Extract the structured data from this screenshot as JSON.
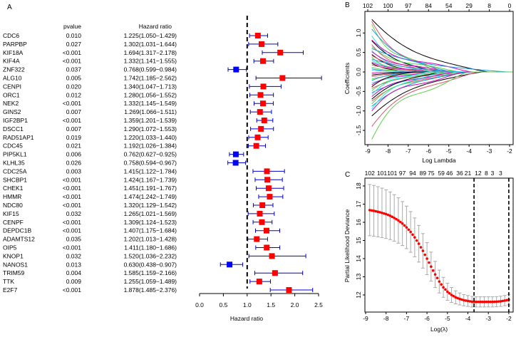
{
  "chart_data": [
    {
      "type": "forest",
      "panel_label": "A",
      "column_headers": {
        "pvalue": "pvalue",
        "hazard_ratio": "Hazard ratio"
      },
      "xlabel": "Hazard ratio",
      "xlim": [
        0,
        2.5
      ],
      "xticks": [
        "0.0",
        "0.5",
        "1.0",
        "1.5",
        "2.0",
        "2.5"
      ],
      "reference_line": 1.0,
      "colors": {
        "risk": "#ff0000",
        "protective": "#0000ff",
        "ci": "#0000cc"
      },
      "rows": [
        {
          "gene": "CDC6",
          "pvalue": "0.010",
          "hr_text": "1.225(1.050−1.429)",
          "hr": 1.225,
          "lo": 1.05,
          "hi": 1.429
        },
        {
          "gene": "PARPBP",
          "pvalue": "0.027",
          "hr_text": "1.302(1.031−1.644)",
          "hr": 1.302,
          "lo": 1.031,
          "hi": 1.644
        },
        {
          "gene": "KIF18A",
          "pvalue": "<0.001",
          "hr_text": "1.694(1.317−2.178)",
          "hr": 1.694,
          "lo": 1.317,
          "hi": 2.178
        },
        {
          "gene": "KIF4A",
          "pvalue": "<0.001",
          "hr_text": "1.332(1.141−1.555)",
          "hr": 1.332,
          "lo": 1.141,
          "hi": 1.555
        },
        {
          "gene": "ZNF322",
          "pvalue": "0.037",
          "hr_text": "0.768(0.599−0.984)",
          "hr": 0.768,
          "lo": 0.599,
          "hi": 0.984
        },
        {
          "gene": "ALG10",
          "pvalue": "0.005",
          "hr_text": "1.742(1.185−2.562)",
          "hr": 1.742,
          "lo": 1.185,
          "hi": 2.562
        },
        {
          "gene": "CENPI",
          "pvalue": "0.020",
          "hr_text": "1.340(1.047−1.713)",
          "hr": 1.34,
          "lo": 1.047,
          "hi": 1.713
        },
        {
          "gene": "ORC1",
          "pvalue": "0.012",
          "hr_text": "1.280(1.056−1.552)",
          "hr": 1.28,
          "lo": 1.056,
          "hi": 1.552
        },
        {
          "gene": "NEK2",
          "pvalue": "<0.001",
          "hr_text": "1.332(1.145−1.549)",
          "hr": 1.332,
          "lo": 1.145,
          "hi": 1.549
        },
        {
          "gene": "GINS2",
          "pvalue": "0.007",
          "hr_text": "1.269(1.066−1.511)",
          "hr": 1.269,
          "lo": 1.066,
          "hi": 1.511
        },
        {
          "gene": "IGF2BP1",
          "pvalue": "<0.001",
          "hr_text": "1.359(1.201−1.539)",
          "hr": 1.359,
          "lo": 1.201,
          "hi": 1.539
        },
        {
          "gene": "DSCC1",
          "pvalue": "0.007",
          "hr_text": "1.290(1.072−1.553)",
          "hr": 1.29,
          "lo": 1.072,
          "hi": 1.553
        },
        {
          "gene": "RAD51AP1",
          "pvalue": "0.019",
          "hr_text": "1.220(1.033−1.440)",
          "hr": 1.22,
          "lo": 1.033,
          "hi": 1.44
        },
        {
          "gene": "CDC45",
          "pvalue": "0.021",
          "hr_text": "1.192(1.026−1.384)",
          "hr": 1.192,
          "lo": 1.026,
          "hi": 1.384
        },
        {
          "gene": "PIP5KL1",
          "pvalue": "0.006",
          "hr_text": "0.762(0.627−0.925)",
          "hr": 0.762,
          "lo": 0.627,
          "hi": 0.925
        },
        {
          "gene": "KLHL35",
          "pvalue": "0.026",
          "hr_text": "0.758(0.594−0.967)",
          "hr": 0.758,
          "lo": 0.594,
          "hi": 0.967
        },
        {
          "gene": "CDC25A",
          "pvalue": "0.003",
          "hr_text": "1.415(1.122−1.784)",
          "hr": 1.415,
          "lo": 1.122,
          "hi": 1.784
        },
        {
          "gene": "SHCBP1",
          "pvalue": "<0.001",
          "hr_text": "1.424(1.167−1.739)",
          "hr": 1.424,
          "lo": 1.167,
          "hi": 1.739
        },
        {
          "gene": "CHEK1",
          "pvalue": "<0.001",
          "hr_text": "1.451(1.191−1.767)",
          "hr": 1.451,
          "lo": 1.191,
          "hi": 1.767
        },
        {
          "gene": "HMMR",
          "pvalue": "<0.001",
          "hr_text": "1.474(1.242−1.749)",
          "hr": 1.474,
          "lo": 1.242,
          "hi": 1.749
        },
        {
          "gene": "NDC80",
          "pvalue": "<0.001",
          "hr_text": "1.320(1.129−1.542)",
          "hr": 1.32,
          "lo": 1.129,
          "hi": 1.542
        },
        {
          "gene": "KIF15",
          "pvalue": "0.032",
          "hr_text": "1.265(1.021−1.569)",
          "hr": 1.265,
          "lo": 1.021,
          "hi": 1.569
        },
        {
          "gene": "CENPF",
          "pvalue": "<0.001",
          "hr_text": "1.309(1.124−1.523)",
          "hr": 1.309,
          "lo": 1.124,
          "hi": 1.523
        },
        {
          "gene": "DEPDC1B",
          "pvalue": "<0.001",
          "hr_text": "1.407(1.175−1.684)",
          "hr": 1.407,
          "lo": 1.175,
          "hi": 1.684
        },
        {
          "gene": "ADAMTS12",
          "pvalue": "0.035",
          "hr_text": "1.202(1.013−1.428)",
          "hr": 1.202,
          "lo": 1.013,
          "hi": 1.428
        },
        {
          "gene": "OIP5",
          "pvalue": "<0.001",
          "hr_text": "1.411(1.180−1.686)",
          "hr": 1.411,
          "lo": 1.18,
          "hi": 1.686
        },
        {
          "gene": "KNOP1",
          "pvalue": "0.032",
          "hr_text": "1.520(1.036−2.232)",
          "hr": 1.52,
          "lo": 1.036,
          "hi": 2.232
        },
        {
          "gene": "NANOS1",
          "pvalue": "0.013",
          "hr_text": "0.630(0.438−0.907)",
          "hr": 0.63,
          "lo": 0.438,
          "hi": 0.907
        },
        {
          "gene": "TRIM59",
          "pvalue": "0.004",
          "hr_text": "1.585(1.159−2.166)",
          "hr": 1.585,
          "lo": 1.159,
          "hi": 2.166
        },
        {
          "gene": "TTK",
          "pvalue": "0.009",
          "hr_text": "1.255(1.059−1.489)",
          "hr": 1.255,
          "lo": 1.059,
          "hi": 1.489
        },
        {
          "gene": "E2F7",
          "pvalue": "<0.001",
          "hr_text": "1.878(1.485−2.376)",
          "hr": 1.878,
          "lo": 1.485,
          "hi": 2.376
        }
      ]
    },
    {
      "type": "line",
      "panel_label": "B",
      "xlabel": "Log Lambda",
      "ylabel": "Coefficients",
      "xlim": [
        -9,
        -2
      ],
      "ylim": [
        -1.8,
        1.4
      ],
      "xticks": [
        "-9",
        "-8",
        "-7",
        "-6",
        "-5",
        "-4",
        "-3",
        "-2"
      ],
      "yticks": [
        "-1.5",
        "-1.0",
        "-0.5",
        "0.0",
        "0.5",
        "1.0"
      ],
      "top_axis_labels": [
        "102",
        "100",
        "97",
        "84",
        "54",
        "29",
        "8",
        "0"
      ],
      "palette": [
        "#000000",
        "#DF536B",
        "#61D04F",
        "#2297E6",
        "#28E2E5",
        "#CD0BBC"
      ],
      "series": [
        {
          "start": 1.35,
          "zero_at": -3.0
        },
        {
          "start": 1.3,
          "zero_at": -5.2
        },
        {
          "start": 1.22,
          "zero_at": -5.5
        },
        {
          "start": 1.1,
          "zero_at": -4.8
        },
        {
          "start": 0.93,
          "zero_at": -5.8
        },
        {
          "start": 0.82,
          "zero_at": -3.8
        },
        {
          "start": 0.8,
          "zero_at": -5.4
        },
        {
          "start": 0.7,
          "zero_at": -5.9
        },
        {
          "start": 0.65,
          "zero_at": -4.4
        },
        {
          "start": 0.6,
          "zero_at": -2.0
        },
        {
          "start": 0.55,
          "zero_at": -6.0
        },
        {
          "start": 0.52,
          "zero_at": -4.9
        },
        {
          "start": 0.45,
          "zero_at": -6.3
        },
        {
          "start": 0.42,
          "zero_at": -5.1
        },
        {
          "start": 0.38,
          "zero_at": -6.6
        },
        {
          "start": 0.33,
          "zero_at": -4.2
        },
        {
          "start": 0.3,
          "zero_at": -6.1
        },
        {
          "start": 0.25,
          "zero_at": -5.6
        },
        {
          "start": 0.22,
          "zero_at": -6.8
        },
        {
          "start": 0.18,
          "zero_at": -5.3
        },
        {
          "start": 0.12,
          "zero_at": -6.4
        },
        {
          "start": 0.08,
          "zero_at": -7.0
        },
        {
          "start": 0.04,
          "zero_at": -5.0
        },
        {
          "start": -0.03,
          "zero_at": -6.9
        },
        {
          "start": -0.08,
          "zero_at": -6.2
        },
        {
          "start": -0.12,
          "zero_at": -5.7
        },
        {
          "start": -0.18,
          "zero_at": -4.6
        },
        {
          "start": -0.22,
          "zero_at": -6.5
        },
        {
          "start": -0.28,
          "zero_at": -4.0
        },
        {
          "start": -0.33,
          "zero_at": -5.9
        },
        {
          "start": -0.38,
          "zero_at": -6.7
        },
        {
          "start": -0.42,
          "zero_at": -4.3
        },
        {
          "start": -0.48,
          "zero_at": -5.5
        },
        {
          "start": -0.53,
          "zero_at": -3.6
        },
        {
          "start": -0.58,
          "zero_at": -6.0
        },
        {
          "start": -0.63,
          "zero_at": -4.7
        },
        {
          "start": -0.7,
          "zero_at": -5.2
        },
        {
          "start": -0.75,
          "zero_at": -4.1
        },
        {
          "start": -0.82,
          "zero_at": -4.5
        },
        {
          "start": -0.88,
          "zero_at": -3.9
        },
        {
          "start": -0.95,
          "zero_at": -5.3
        },
        {
          "start": -1.0,
          "zero_at": -4.2
        },
        {
          "start": -1.13,
          "zero_at": -3.3
        },
        {
          "start": -1.4,
          "zero_at": -3.5
        },
        {
          "start": -1.73,
          "zero_at": -4.0
        }
      ]
    },
    {
      "type": "scatter",
      "panel_label": "C",
      "xlabel": "Log(λ)",
      "ylabel": "Partial Likelihood Deviance",
      "xlim": [
        -9,
        -2
      ],
      "ylim": [
        11.3,
        18.3
      ],
      "xticks": [
        "-9",
        "-8",
        "-7",
        "-6",
        "-5",
        "-4",
        "-3",
        "-2"
      ],
      "yticks": [
        "12",
        "13",
        "14",
        "15",
        "16",
        "17",
        "18"
      ],
      "top_axis_labels": [
        {
          "x": -8.8,
          "label": "102"
        },
        {
          "x": -8.2,
          "label": "101"
        },
        {
          "x": -7.7,
          "label": "101"
        },
        {
          "x": -7.2,
          "label": "97"
        },
        {
          "x": -6.7,
          "label": "94"
        },
        {
          "x": -6.2,
          "label": "89"
        },
        {
          "x": -5.8,
          "label": "75"
        },
        {
          "x": -5.3,
          "label": "59"
        },
        {
          "x": -4.9,
          "label": "46"
        },
        {
          "x": -4.4,
          "label": "36"
        },
        {
          "x": -4.0,
          "label": "21"
        },
        {
          "x": -3.5,
          "label": "12"
        },
        {
          "x": -3.1,
          "label": "8"
        },
        {
          "x": -2.8,
          "label": "3"
        },
        {
          "x": -2.4,
          "label": "3"
        }
      ],
      "vlines": [
        -3.7,
        -2.0
      ],
      "point_color": "#ff0000",
      "errorbar_color": "#aaaaaa",
      "x": [
        -8.8,
        -8.6,
        -8.4,
        -8.2,
        -8.0,
        -7.8,
        -7.6,
        -7.4,
        -7.2,
        -7.0,
        -6.8,
        -6.6,
        -6.4,
        -6.2,
        -6.0,
        -5.8,
        -5.6,
        -5.4,
        -5.2,
        -5.0,
        -4.8,
        -4.6,
        -4.4,
        -4.2,
        -4.0,
        -3.8,
        -3.6,
        -3.4,
        -3.2,
        -3.0,
        -2.8,
        -2.6,
        -2.4,
        -2.2,
        -2.0
      ],
      "mean": [
        16.67,
        16.63,
        16.58,
        16.52,
        16.45,
        16.36,
        16.24,
        16.1,
        15.93,
        15.72,
        15.47,
        15.17,
        14.82,
        14.43,
        14.0,
        13.56,
        13.13,
        12.74,
        12.42,
        12.18,
        12.0,
        11.87,
        11.78,
        11.71,
        11.67,
        11.63,
        11.62,
        11.62,
        11.62,
        11.62,
        11.62,
        11.63,
        11.65,
        11.69,
        11.74
      ],
      "se": [
        1.41,
        1.4,
        1.38,
        1.36,
        1.34,
        1.31,
        1.28,
        1.25,
        1.21,
        1.17,
        1.12,
        1.07,
        1.01,
        0.95,
        0.88,
        0.8,
        0.72,
        0.63,
        0.55,
        0.47,
        0.41,
        0.36,
        0.33,
        0.31,
        0.3,
        0.29,
        0.28,
        0.28,
        0.28,
        0.28,
        0.28,
        0.28,
        0.28,
        0.28,
        0.29
      ]
    }
  ]
}
